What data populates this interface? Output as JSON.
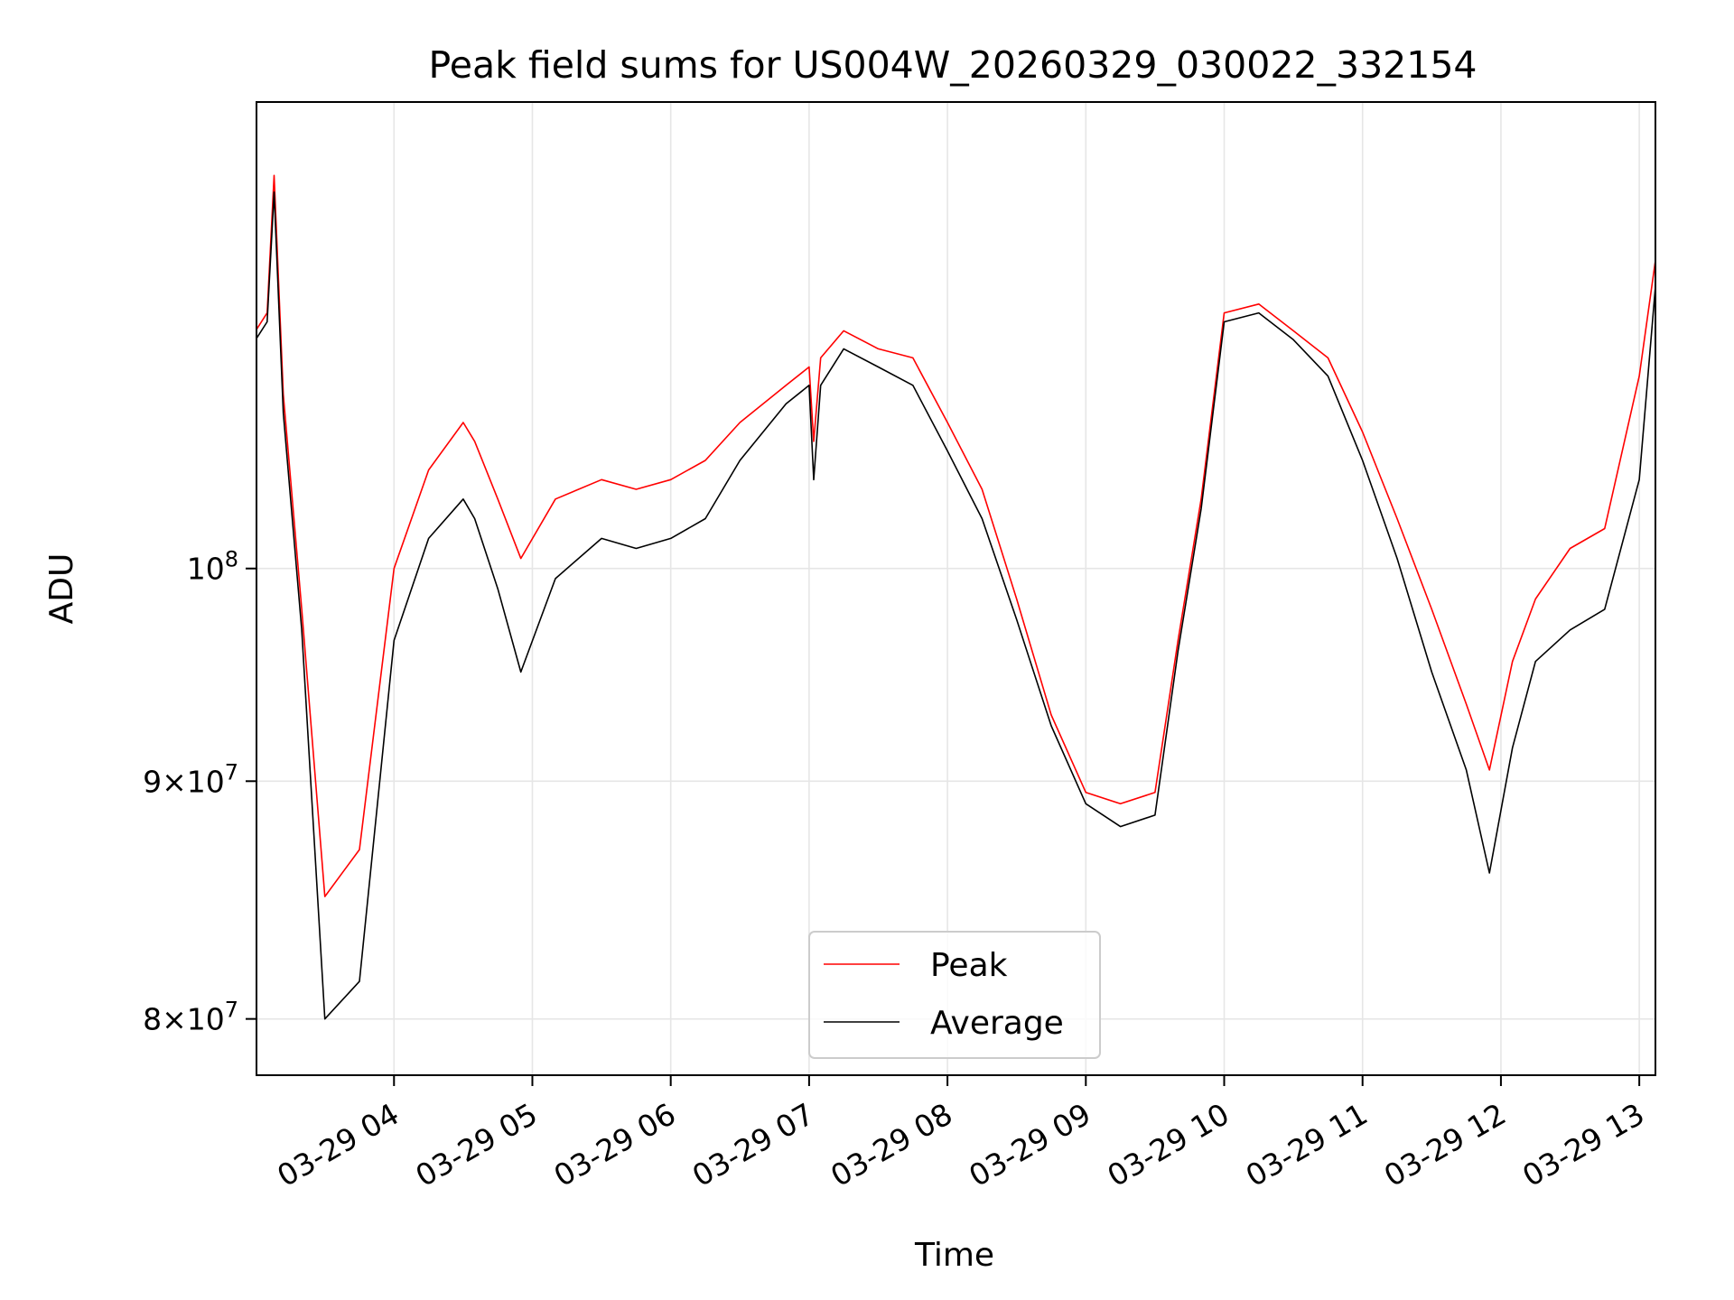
{
  "chart_data": {
    "type": "line",
    "title": "Peak field sums for US004W_20260329_030022_332154",
    "xlabel": "Time",
    "ylabel": "ADU",
    "yscale": "log",
    "ylim": [
      77800000,
      126000000
    ],
    "xlim": [
      "03-29 03:00:22",
      "03-29 13:07"
    ],
    "grid": true,
    "legend": "lower-center",
    "x_ticks": [
      "03-29 04",
      "03-29 05",
      "03-29 06",
      "03-29 07",
      "03-29 08",
      "03-29 09",
      "03-29 10",
      "03-29 11",
      "03-29 12",
      "03-29 13"
    ],
    "y_ticks": [
      {
        "value": 80000000,
        "mant": "8",
        "base": "10",
        "exp": "7"
      },
      {
        "value": 90000000,
        "mant": "9",
        "base": "10",
        "exp": "7"
      },
      {
        "value": 100000000,
        "mant": "",
        "base": "10",
        "exp": "8"
      }
    ],
    "x": [
      "03-29 03:00",
      "03-29 03:05",
      "03-29 03:08",
      "03-29 03:12",
      "03-29 03:20",
      "03-29 03:30",
      "03-29 03:45",
      "03-29 04:00",
      "03-29 04:15",
      "03-29 04:30",
      "03-29 04:35",
      "03-29 04:45",
      "03-29 04:55",
      "03-29 05:10",
      "03-29 05:30",
      "03-29 05:45",
      "03-29 06:00",
      "03-29 06:15",
      "03-29 06:30",
      "03-29 06:50",
      "03-29 07:00",
      "03-29 07:02",
      "03-29 07:05",
      "03-29 07:15",
      "03-29 07:30",
      "03-29 07:45",
      "03-29 08:00",
      "03-29 08:15",
      "03-29 08:30",
      "03-29 08:45",
      "03-29 09:00",
      "03-29 09:15",
      "03-29 09:30",
      "03-29 09:40",
      "03-29 09:50",
      "03-29 10:00",
      "03-29 10:15",
      "03-29 10:30",
      "03-29 10:45",
      "03-29 11:00",
      "03-29 11:15",
      "03-29 11:30",
      "03-29 11:45",
      "03-29 11:55",
      "03-29 12:05",
      "03-29 12:15",
      "03-29 12:30",
      "03-29 12:45",
      "03-29 13:00",
      "03-29 13:07"
    ],
    "series": [
      {
        "name": "Peak",
        "color": "#ff0000",
        "values": [
          112500000,
          113500000,
          121500000,
          109000000,
          98000000,
          85000000,
          87000000,
          100000000,
          105000000,
          107500000,
          106500000,
          103500000,
          100500000,
          103500000,
          104500000,
          104000000,
          104500000,
          105500000,
          107500000,
          109500000,
          110500000,
          106500000,
          111000000,
          112500000,
          111500000,
          111000000,
          107500000,
          104000000,
          98500000,
          93000000,
          89500000,
          89000000,
          89500000,
          96500000,
          103500000,
          113500000,
          114000000,
          112500000,
          111000000,
          107000000,
          102500000,
          98000000,
          93500000,
          90500000,
          95500000,
          98500000,
          101000000,
          102000000,
          110000000,
          116500000
        ]
      },
      {
        "name": "Average",
        "color": "#000000",
        "values": [
          112000000,
          113000000,
          120500000,
          108000000,
          97000000,
          80000000,
          81500000,
          96500000,
          101500000,
          103500000,
          102500000,
          99000000,
          95000000,
          99500000,
          101500000,
          101000000,
          101500000,
          102500000,
          105500000,
          108500000,
          109500000,
          104500000,
          109500000,
          111500000,
          110500000,
          109500000,
          106000000,
          102500000,
          97500000,
          92500000,
          89000000,
          88000000,
          88500000,
          96000000,
          103000000,
          113000000,
          113500000,
          112000000,
          110000000,
          105500000,
          100500000,
          95000000,
          90500000,
          86000000,
          91500000,
          95500000,
          97000000,
          98000000,
          104500000,
          115000000
        ]
      }
    ]
  }
}
